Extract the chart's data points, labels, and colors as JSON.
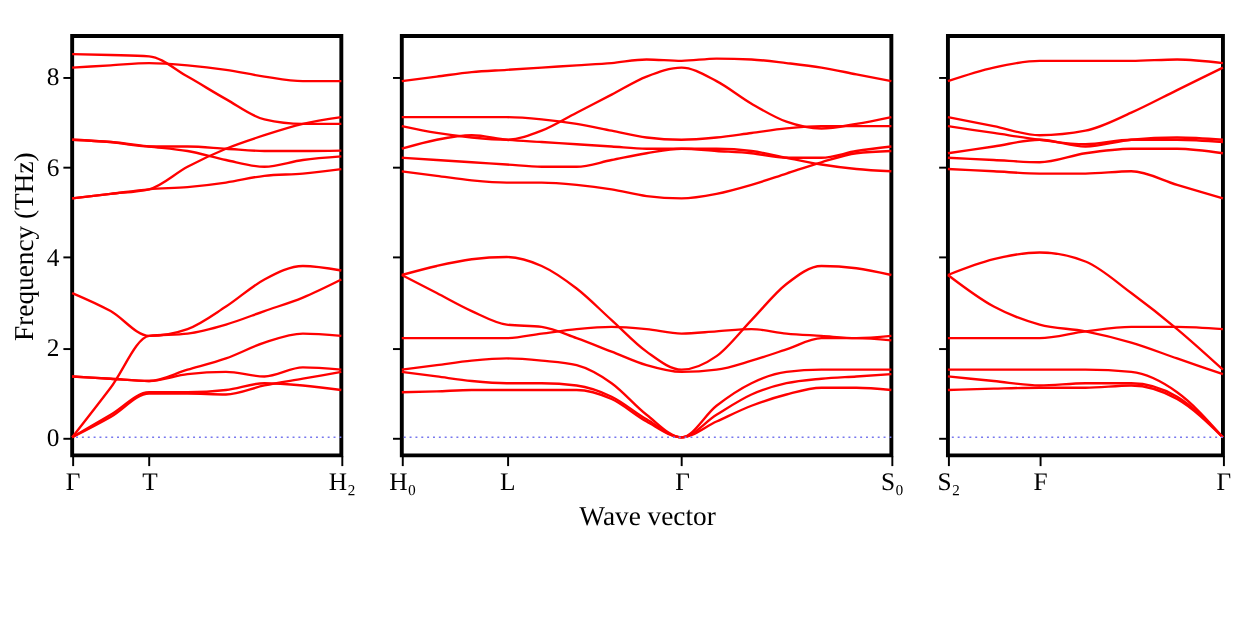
{
  "chart_data": [
    {
      "type": "line",
      "ylabel": "Frequency (THz)",
      "categories": [
        "Γ",
        null,
        "T",
        null,
        null,
        null,
        null,
        "H₂"
      ],
      "ylim": [
        -0.4,
        8.9
      ],
      "yticks": [
        0,
        2,
        4,
        6,
        8
      ],
      "grid": false,
      "legend": false,
      "marker": "none",
      "line_style": "solid",
      "ref_lines": [
        {
          "axis": "y",
          "value": 0,
          "color": "#7777ee",
          "line_style": "dotted"
        }
      ],
      "series": [
        {
          "color": "#ff0000",
          "values": [
            0,
            0.5,
            1.0,
            1.0,
            1.05,
            1.2,
            1.15,
            1.05
          ]
        },
        {
          "color": "#ff0000",
          "values": [
            0,
            0.45,
            0.97,
            0.97,
            0.95,
            1.15,
            1.3,
            1.45
          ]
        },
        {
          "color": "#ff0000",
          "values": [
            1.35,
            1.3,
            1.25,
            1.4,
            1.45,
            1.35,
            1.55,
            1.5
          ]
        },
        {
          "color": "#ff0000",
          "values": [
            0,
            1.1,
            2.25,
            2.3,
            2.5,
            2.8,
            3.1,
            3.5
          ]
        },
        {
          "color": "#ff0000",
          "values": [
            1.35,
            1.3,
            1.25,
            1.5,
            1.75,
            2.1,
            2.3,
            2.25
          ]
        },
        {
          "color": "#ff0000",
          "values": [
            3.2,
            2.8,
            2.25,
            2.4,
            2.9,
            3.5,
            3.8,
            3.7
          ]
        },
        {
          "color": "#ff0000",
          "values": [
            5.3,
            5.4,
            5.5,
            5.55,
            5.65,
            5.8,
            5.85,
            5.95
          ]
        },
        {
          "color": "#ff0000",
          "values": [
            5.3,
            5.4,
            5.5,
            6.0,
            6.4,
            6.7,
            6.95,
            7.1
          ]
        },
        {
          "color": "#ff0000",
          "values": [
            6.6,
            6.55,
            6.45,
            6.45,
            6.4,
            6.35,
            6.35,
            6.36
          ]
        },
        {
          "color": "#ff0000",
          "values": [
            6.6,
            6.55,
            6.45,
            6.35,
            6.15,
            6.0,
            6.15,
            6.23
          ]
        },
        {
          "color": "#ff0000",
          "values": [
            8.2,
            8.25,
            8.3,
            8.25,
            8.15,
            8.0,
            7.9,
            7.9
          ]
        },
        {
          "color": "#ff0000",
          "values": [
            8.5,
            8.48,
            8.45,
            8.0,
            7.5,
            7.05,
            6.95,
            6.95
          ]
        }
      ]
    },
    {
      "type": "line",
      "xlabel": "Wave vector",
      "categories": [
        "H₀",
        null,
        null,
        "L",
        null,
        null,
        null,
        null,
        "Γ",
        null,
        null,
        null,
        null,
        null,
        "S₀"
      ],
      "ylim": [
        -0.4,
        8.9
      ],
      "yticks": [
        {
          "value": 0,
          "label": null
        },
        {
          "value": 2,
          "label": null
        },
        {
          "value": 4,
          "label": null
        },
        {
          "value": 6,
          "label": null
        },
        {
          "value": 8,
          "label": null
        }
      ],
      "tick_labels": "x",
      "grid": false,
      "legend": false,
      "marker": "none",
      "line_style": "solid",
      "ref_lines": [
        {
          "axis": "y",
          "value": 0,
          "color": "#7777ee",
          "line_style": "dotted"
        }
      ],
      "series": [
        {
          "color": "#ff0000",
          "values": [
            1.0,
            1.02,
            1.05,
            1.05,
            1.05,
            1.05,
            0.85,
            0.35,
            0,
            0.35,
            0.7,
            0.95,
            1.1,
            1.1,
            1.05
          ]
        },
        {
          "color": "#ff0000",
          "values": [
            1.45,
            1.35,
            1.25,
            1.2,
            1.2,
            1.15,
            0.9,
            0.4,
            0,
            0.5,
            0.95,
            1.2,
            1.3,
            1.35,
            1.4
          ]
        },
        {
          "color": "#ff0000",
          "values": [
            1.5,
            1.6,
            1.7,
            1.75,
            1.7,
            1.6,
            1.2,
            0.5,
            0,
            0.7,
            1.2,
            1.45,
            1.5,
            1.5,
            1.5
          ]
        },
        {
          "color": "#ff0000",
          "values": [
            2.2,
            2.2,
            2.2,
            2.2,
            2.3,
            2.4,
            2.45,
            2.4,
            2.3,
            2.35,
            2.4,
            2.3,
            2.25,
            2.2,
            2.25
          ]
        },
        {
          "color": "#ff0000",
          "values": [
            3.6,
            3.2,
            2.8,
            2.5,
            2.45,
            2.2,
            1.9,
            1.6,
            1.45,
            1.5,
            1.7,
            1.95,
            2.2,
            2.2,
            2.15
          ]
        },
        {
          "color": "#ff0000",
          "values": [
            3.6,
            3.8,
            3.95,
            4.0,
            3.8,
            3.3,
            2.6,
            1.9,
            1.5,
            1.8,
            2.6,
            3.4,
            3.8,
            3.75,
            3.6
          ]
        },
        {
          "color": "#ff0000",
          "values": [
            5.9,
            5.8,
            5.7,
            5.65,
            5.65,
            5.6,
            5.5,
            5.35,
            5.3,
            5.4,
            5.6,
            5.85,
            6.1,
            6.3,
            6.35
          ]
        },
        {
          "color": "#ff0000",
          "values": [
            6.2,
            6.15,
            6.1,
            6.05,
            6.0,
            6.0,
            6.15,
            6.3,
            6.4,
            6.4,
            6.35,
            6.2,
            6.05,
            5.95,
            5.9
          ]
        },
        {
          "color": "#ff0000",
          "values": [
            6.4,
            6.6,
            6.7,
            6.6,
            6.55,
            6.5,
            6.45,
            6.4,
            6.4,
            6.35,
            6.3,
            6.2,
            6.2,
            6.35,
            6.45
          ]
        },
        {
          "color": "#ff0000",
          "values": [
            7.1,
            7.1,
            7.1,
            7.1,
            7.05,
            6.95,
            6.8,
            6.65,
            6.6,
            6.65,
            6.75,
            6.85,
            6.9,
            6.9,
            6.9
          ]
        },
        {
          "color": "#ff0000",
          "values": [
            6.9,
            6.75,
            6.65,
            6.6,
            6.8,
            7.2,
            7.6,
            8.0,
            8.2,
            7.9,
            7.4,
            7.0,
            6.85,
            6.95,
            7.1
          ]
        },
        {
          "color": "#ff0000",
          "values": [
            7.9,
            8.0,
            8.1,
            8.15,
            8.2,
            8.25,
            8.3,
            8.38,
            8.35,
            8.4,
            8.38,
            8.3,
            8.2,
            8.05,
            7.9
          ]
        }
      ]
    },
    {
      "type": "line",
      "categories": [
        "S₂",
        null,
        "F",
        null,
        null,
        null,
        "Γ"
      ],
      "ylim": [
        -0.4,
        8.9
      ],
      "yticks": [
        {
          "value": 0,
          "label": null
        },
        {
          "value": 2,
          "label": null
        },
        {
          "value": 4,
          "label": null
        },
        {
          "value": 6,
          "label": null
        },
        {
          "value": 8,
          "label": null
        }
      ],
      "tick_labels": "x",
      "grid": false,
      "legend": false,
      "marker": "none",
      "line_style": "solid",
      "ref_lines": [
        {
          "axis": "y",
          "value": 0,
          "color": "#7777ee",
          "line_style": "dotted"
        }
      ],
      "series": [
        {
          "color": "#ff0000",
          "values": [
            1.05,
            1.08,
            1.1,
            1.1,
            1.15,
            0.85,
            0
          ]
        },
        {
          "color": "#ff0000",
          "values": [
            1.35,
            1.25,
            1.15,
            1.2,
            1.2,
            0.9,
            0
          ]
        },
        {
          "color": "#ff0000",
          "values": [
            1.5,
            1.5,
            1.5,
            1.5,
            1.45,
            1.0,
            0
          ]
        },
        {
          "color": "#ff0000",
          "values": [
            2.2,
            2.2,
            2.2,
            2.35,
            2.45,
            2.45,
            2.4
          ]
        },
        {
          "color": "#ff0000",
          "values": [
            3.6,
            2.9,
            2.5,
            2.35,
            2.1,
            1.75,
            1.4
          ]
        },
        {
          "color": "#ff0000",
          "values": [
            3.6,
            3.95,
            4.1,
            3.9,
            3.2,
            2.4,
            1.5
          ]
        },
        {
          "color": "#ff0000",
          "values": [
            5.95,
            5.9,
            5.85,
            5.85,
            5.9,
            5.6,
            5.3
          ]
        },
        {
          "color": "#ff0000",
          "values": [
            6.2,
            6.15,
            6.1,
            6.3,
            6.4,
            6.4,
            6.3
          ]
        },
        {
          "color": "#ff0000",
          "values": [
            6.3,
            6.45,
            6.6,
            6.45,
            6.6,
            6.65,
            6.6
          ]
        },
        {
          "color": "#ff0000",
          "values": [
            6.9,
            6.75,
            6.6,
            6.5,
            6.6,
            6.6,
            6.55
          ]
        },
        {
          "color": "#ff0000",
          "values": [
            7.1,
            6.9,
            6.7,
            6.8,
            7.2,
            7.7,
            8.2
          ]
        },
        {
          "color": "#ff0000",
          "values": [
            7.9,
            8.2,
            8.35,
            8.35,
            8.35,
            8.38,
            8.3
          ]
        }
      ]
    }
  ]
}
